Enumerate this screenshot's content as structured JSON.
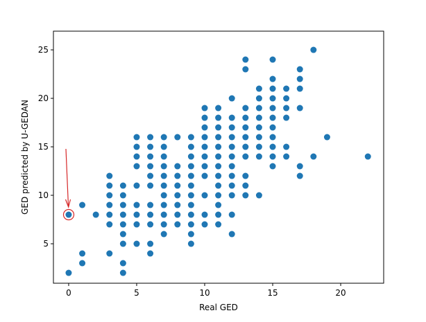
{
  "chart_data": {
    "type": "scatter",
    "xlabel": "Real GED",
    "ylabel": "GED predicted by U-GEDAN",
    "color": "#1f77b4",
    "x": [
      0,
      0,
      1,
      1,
      1,
      2,
      3,
      3,
      3,
      3,
      3,
      3,
      3,
      4,
      4,
      4,
      4,
      4,
      4,
      4,
      4,
      4,
      5,
      5,
      5,
      5,
      5,
      5,
      5,
      5,
      5,
      6,
      6,
      6,
      6,
      6,
      6,
      6,
      6,
      6,
      6,
      6,
      7,
      7,
      7,
      7,
      7,
      7,
      7,
      7,
      7,
      7,
      7,
      8,
      8,
      8,
      8,
      8,
      8,
      8,
      8,
      9,
      9,
      9,
      9,
      9,
      9,
      9,
      9,
      9,
      9,
      9,
      9,
      10,
      10,
      10,
      10,
      10,
      10,
      10,
      10,
      10,
      10,
      10,
      11,
      11,
      11,
      11,
      11,
      11,
      11,
      11,
      11,
      11,
      11,
      11,
      11,
      12,
      12,
      12,
      12,
      12,
      12,
      12,
      12,
      12,
      12,
      12,
      12,
      13,
      13,
      13,
      13,
      13,
      13,
      13,
      13,
      13,
      13,
      13,
      14,
      14,
      14,
      14,
      14,
      14,
      14,
      14,
      14,
      15,
      15,
      15,
      15,
      15,
      15,
      15,
      15,
      15,
      15,
      15,
      16,
      16,
      16,
      16,
      16,
      16,
      17,
      17,
      17,
      17,
      17,
      17,
      18,
      18,
      19,
      22
    ],
    "y": [
      2,
      8,
      3,
      4,
      9,
      8,
      4,
      7,
      8,
      9,
      10,
      11,
      12,
      2,
      3,
      5,
      6,
      7,
      8,
      9,
      10,
      11,
      5,
      7,
      8,
      9,
      11,
      13,
      14,
      15,
      16,
      4,
      5,
      7,
      8,
      9,
      11,
      12,
      13,
      14,
      15,
      16,
      6,
      7,
      8,
      9,
      10,
      11,
      12,
      13,
      14,
      15,
      16,
      7,
      8,
      9,
      10,
      11,
      12,
      13,
      16,
      5,
      6,
      7,
      8,
      9,
      10,
      11,
      12,
      13,
      14,
      15,
      16,
      7,
      8,
      10,
      12,
      13,
      14,
      15,
      16,
      17,
      18,
      19,
      7,
      8,
      9,
      10,
      11,
      12,
      13,
      14,
      15,
      16,
      17,
      18,
      19,
      6,
      8,
      10,
      11,
      12,
      13,
      14,
      15,
      16,
      17,
      18,
      20,
      10,
      11,
      12,
      14,
      15,
      16,
      17,
      18,
      19,
      23,
      24,
      10,
      14,
      15,
      16,
      17,
      18,
      19,
      20,
      21,
      13,
      14,
      15,
      16,
      17,
      18,
      19,
      20,
      21,
      22,
      24,
      14,
      15,
      18,
      19,
      20,
      21,
      12,
      13,
      19,
      21,
      22,
      23,
      14,
      25,
      16,
      14
    ],
    "xlim": [
      -1.12,
      23.16
    ],
    "ylim": [
      0.93,
      26.93
    ],
    "xticks": [
      0,
      5,
      10,
      15,
      20
    ],
    "yticks": [
      5,
      10,
      15,
      20,
      25
    ]
  }
}
